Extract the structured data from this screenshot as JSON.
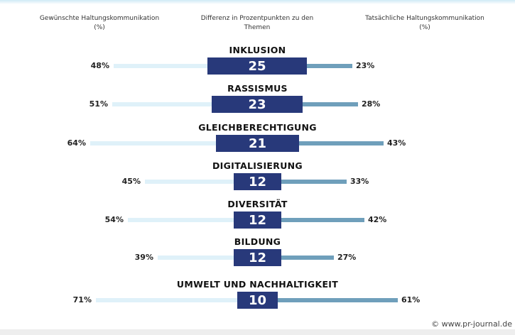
{
  "header": {
    "left": "Gewünschte Haltungskommunikation (%)",
    "center": "Differenz in Prozentpunkten zu den Themen",
    "right": "Tatsächliche Haltungskommunikation (%)"
  },
  "copyright": "© www.pr-journal.de",
  "colors": {
    "box": "#28397a",
    "left_bar": "#dff1f9",
    "right_bar": "#6f9fbb"
  },
  "chart_data": {
    "type": "bar",
    "title": "",
    "categories": [
      "INKLUSION",
      "RASSISMUS",
      "GLEICHBERECHTIGUNG",
      "DIGITALISIERUNG",
      "DIVERSITÄT",
      "BILDUNG",
      "UMWELT UND NACHHALTIGKEIT"
    ],
    "series": [
      {
        "name": "Gewünschte Haltungskommunikation (%)",
        "values": [
          48,
          51,
          64,
          45,
          54,
          39,
          71
        ]
      },
      {
        "name": "Differenz in Prozentpunkten zu den Themen",
        "values": [
          25,
          23,
          21,
          12,
          12,
          12,
          10
        ]
      },
      {
        "name": "Tatsächliche Haltungskommunikation (%)",
        "values": [
          23,
          28,
          43,
          33,
          42,
          27,
          61
        ]
      }
    ],
    "xlabel": "",
    "ylabel": "",
    "legend": "column headers at top"
  },
  "rows": [
    {
      "title": "INKLUSION",
      "diff": "25",
      "wanted": "48%",
      "actual": "23%",
      "l": 160,
      "bl": 292,
      "br": 432,
      "r": 496
    },
    {
      "title": "RASSISMUS",
      "diff": "23",
      "wanted": "51%",
      "actual": "28%",
      "l": 158,
      "bl": 298,
      "br": 426,
      "r": 504
    },
    {
      "title": "GLEICHBERECHTIGUNG",
      "diff": "21",
      "wanted": "64%",
      "actual": "43%",
      "l": 127,
      "bl": 304,
      "br": 421,
      "r": 540
    },
    {
      "title": "DIGITALISIERUNG",
      "diff": "12",
      "wanted": "45%",
      "actual": "33%",
      "l": 204,
      "bl": 329,
      "br": 396,
      "r": 488
    },
    {
      "title": "DIVERSITÄT",
      "diff": "12",
      "wanted": "54%",
      "actual": "42%",
      "l": 180,
      "bl": 329,
      "br": 396,
      "r": 513
    },
    {
      "title": "BILDUNG",
      "diff": "12",
      "wanted": "39%",
      "actual": "27%",
      "l": 222,
      "bl": 329,
      "br": 396,
      "r": 470
    },
    {
      "title": "UMWELT UND NACHHALTIGKEIT",
      "diff": "10",
      "wanted": "71%",
      "actual": "61%",
      "l": 135,
      "bl": 334,
      "br": 391,
      "r": 560
    }
  ]
}
